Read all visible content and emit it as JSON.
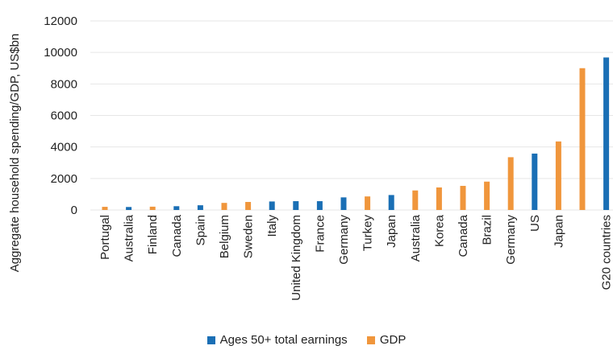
{
  "chart_data": {
    "type": "bar",
    "title": "",
    "ylabel": "Aggregate household spending/GDP, US$bn",
    "xlabel": "",
    "ylim": [
      0,
      12000
    ],
    "yticks": [
      0,
      2000,
      4000,
      6000,
      8000,
      10000,
      12000
    ],
    "grid": "horizontal",
    "legend_position": "bottom",
    "series_meta": [
      {
        "name": "Ages 50+ total earnings",
        "color": "#1a6fb5"
      },
      {
        "name": "GDP",
        "color": "#f0963c"
      }
    ],
    "bars": [
      {
        "label": "Portugal",
        "value": 200,
        "series": 1
      },
      {
        "label": "Australia",
        "value": 190,
        "series": 0
      },
      {
        "label": "Finland",
        "value": 210,
        "series": 1
      },
      {
        "label": "Canada",
        "value": 240,
        "series": 0
      },
      {
        "label": "Spain",
        "value": 300,
        "series": 0
      },
      {
        "label": "Belgium",
        "value": 450,
        "series": 1
      },
      {
        "label": "Sweden",
        "value": 510,
        "series": 1
      },
      {
        "label": "Italy",
        "value": 540,
        "series": 0
      },
      {
        "label": "United Kingdom",
        "value": 560,
        "series": 0
      },
      {
        "label": "France",
        "value": 560,
        "series": 0
      },
      {
        "label": "Germany",
        "value": 800,
        "series": 0
      },
      {
        "label": "Turkey",
        "value": 860,
        "series": 1
      },
      {
        "label": "Japan",
        "value": 950,
        "series": 0
      },
      {
        "label": "Australia",
        "value": 1240,
        "series": 1
      },
      {
        "label": "Korea",
        "value": 1430,
        "series": 1
      },
      {
        "label": "Canada",
        "value": 1530,
        "series": 1
      },
      {
        "label": "Brazil",
        "value": 1800,
        "series": 1
      },
      {
        "label": "Germany",
        "value": 3350,
        "series": 1
      },
      {
        "label": "US",
        "value": 3580,
        "series": 0
      },
      {
        "label": "Japan",
        "value": 4350,
        "series": 1
      },
      {
        "label": "",
        "value": 9000,
        "series": 1
      },
      {
        "label": "G20 countries",
        "value": 9680,
        "series": 0
      }
    ]
  },
  "legend": {
    "items": [
      {
        "label": "Ages 50+ total earnings",
        "color": "#1a6fb5"
      },
      {
        "label": "GDP",
        "color": "#f0963c"
      }
    ]
  }
}
